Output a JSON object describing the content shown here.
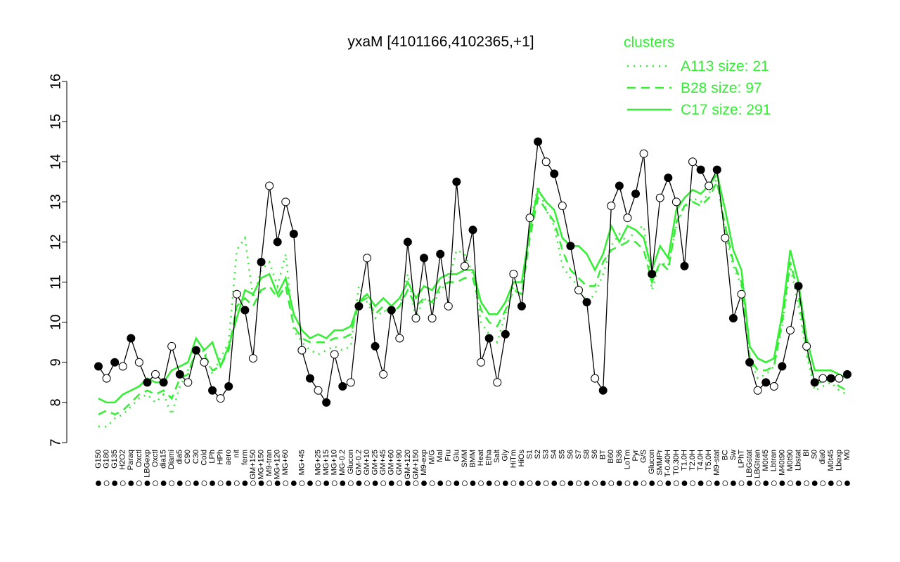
{
  "chart_data": {
    "type": "line",
    "title": "yxaM [4101166,4102365,+1]",
    "legend_title": "clusters",
    "legend_color": "#33ee33",
    "ylim": [
      7,
      16
    ],
    "yticks": [
      7,
      8,
      9,
      10,
      11,
      12,
      13,
      14,
      15,
      16
    ],
    "categories": [
      "G150",
      "G180",
      "G135",
      "H2O2",
      "Paraq",
      "Oxctl",
      "LBGexp",
      "Oxctl",
      "dia15",
      "Diami",
      "dia5",
      "C90",
      "C30",
      "Cold",
      "LPh",
      "HPh",
      "aero",
      "nit",
      "ferm",
      "GM+150",
      "MG+150",
      "M9-tran",
      "MG+120",
      "MG+60",
      null,
      "MG+45",
      null,
      "MG+25",
      "MG+15",
      "MG+10",
      "MG-0.2",
      "Glucon",
      "GM-0.2",
      "GM+10",
      "GM+25",
      "GM+45",
      "GM+60",
      "GM+90",
      "GM+120",
      "GM+150",
      "M9-exp",
      "M/G",
      "Mal",
      "Fru",
      "Glu",
      "SMM",
      "BMM",
      "Heat",
      "Etha",
      "Salt",
      "Gly",
      "HiTm",
      "HiOs",
      "S1",
      "S2",
      "S3",
      "S4",
      "S5",
      "S6",
      "S7",
      "S8",
      "S6",
      "BT",
      "B60",
      "B36",
      "LoTm",
      "Pyr",
      "G/S",
      "Glucon",
      "SMMPr",
      "T-0.40H",
      "T0.30H",
      "T1.0H",
      "T2.0H",
      "T4.0H",
      "T5.0H",
      "M9-stat",
      "BC",
      "Sw",
      "LPhT",
      "LBGstat",
      "LBGtran",
      "M0t45",
      "Lbtran",
      "M40t90",
      "M0t90",
      "Lbstat",
      "Bl",
      "S0",
      "dia0",
      "M0t45",
      "Lbexp",
      "M0"
    ],
    "values": [
      8.9,
      8.6,
      9.0,
      8.9,
      9.6,
      9.0,
      8.5,
      8.7,
      8.5,
      9.4,
      8.7,
      8.5,
      9.3,
      9.0,
      8.3,
      8.1,
      8.4,
      10.7,
      10.3,
      9.1,
      11.5,
      13.4,
      12.0,
      13.0,
      12.2,
      9.3,
      8.6,
      8.3,
      8.0,
      9.2,
      8.4,
      8.5,
      10.4,
      11.6,
      9.4,
      8.7,
      10.3,
      9.6,
      12.0,
      10.1,
      11.6,
      10.1,
      11.7,
      10.4,
      13.5,
      11.4,
      12.3,
      9.0,
      9.6,
      8.5,
      9.7,
      11.2,
      10.4,
      12.6,
      14.5,
      14.0,
      13.7,
      12.9,
      11.9,
      10.8,
      10.5,
      8.6,
      8.3,
      12.9,
      13.4,
      12.6,
      13.2,
      14.2,
      11.2,
      13.1,
      13.6,
      13.0,
      11.4,
      14.0,
      13.8,
      13.4,
      13.8,
      12.1,
      10.1,
      10.7,
      9.0,
      8.3,
      8.5,
      8.4,
      8.9,
      9.8,
      10.9,
      9.4,
      8.5,
      8.6,
      8.6,
      8.6,
      8.7
    ],
    "color": "#000000",
    "series": [
      {
        "name": "A113 size: 21",
        "color": "#33ee33",
        "style": "dotted",
        "values": [
          7.4,
          7.4,
          7.6,
          7.7,
          7.9,
          8.1,
          8.2,
          8.0,
          8.2,
          7.7,
          8.4,
          8.8,
          9.2,
          9.3,
          8.7,
          9.1,
          9.5,
          11.8,
          12.1,
          10.6,
          11.3,
          11.5,
          10.9,
          11.7,
          9.8,
          9.5,
          9.3,
          9.2,
          9.3,
          9.4,
          9.3,
          9.4,
          10.9,
          10.5,
          10.1,
          10.3,
          10.2,
          10.4,
          11.2,
          10.1,
          10.6,
          10.4,
          10.8,
          11.0,
          11.8,
          11.7,
          11.2,
          10.0,
          9.7,
          9.5,
          10.2,
          10.9,
          10.7,
          12.4,
          13.4,
          12.8,
          12.4,
          11.4,
          11.1,
          10.9,
          10.5,
          10.7,
          11.2,
          11.9,
          12.2,
          12.0,
          12.3,
          12.4,
          10.8,
          11.5,
          11.4,
          12.4,
          12.9,
          13.1,
          13.0,
          13.2,
          13.6,
          12.2,
          11.4,
          10.9,
          9.1,
          8.6,
          8.7,
          8.9,
          9.9,
          11.4,
          10.4,
          9.2,
          8.3,
          8.4,
          8.5,
          8.3,
          8.2
        ]
      },
      {
        "name": "B28 size: 97",
        "color": "#33ee33",
        "style": "dashed",
        "values": [
          7.7,
          7.8,
          7.7,
          7.8,
          8.0,
          8.2,
          8.3,
          8.2,
          8.3,
          8.1,
          8.6,
          8.7,
          9.3,
          9.2,
          8.8,
          8.9,
          9.3,
          10.4,
          10.6,
          10.4,
          10.8,
          10.9,
          10.6,
          10.9,
          9.9,
          9.6,
          9.5,
          9.5,
          9.5,
          9.6,
          9.6,
          9.7,
          10.5,
          10.6,
          10.2,
          10.4,
          10.2,
          10.4,
          10.8,
          10.4,
          10.6,
          10.5,
          10.9,
          11.0,
          11.0,
          11.1,
          11.1,
          10.3,
          10.0,
          9.9,
          10.3,
          10.8,
          10.7,
          12.1,
          13.1,
          12.8,
          12.5,
          11.8,
          11.3,
          11.1,
          10.9,
          10.9,
          11.5,
          11.8,
          11.9,
          12.0,
          12.0,
          11.8,
          11.0,
          11.5,
          11.3,
          12.5,
          12.9,
          13.0,
          12.9,
          13.1,
          13.5,
          12.4,
          11.5,
          11.0,
          9.1,
          8.8,
          8.8,
          8.9,
          10.0,
          11.5,
          10.7,
          9.3,
          8.5,
          8.5,
          8.6,
          8.4,
          8.3
        ]
      },
      {
        "name": "C17 size: 291",
        "color": "#33ee33",
        "style": "solid",
        "values": [
          8.1,
          8.0,
          8.0,
          8.2,
          8.3,
          8.4,
          8.6,
          8.5,
          8.5,
          8.8,
          8.9,
          9.0,
          9.6,
          9.3,
          9.5,
          8.9,
          9.4,
          10.1,
          10.8,
          10.7,
          11.1,
          11.2,
          10.7,
          11.1,
          10.2,
          9.8,
          9.6,
          9.7,
          9.6,
          9.8,
          9.8,
          9.9,
          10.5,
          10.7,
          10.4,
          10.6,
          10.4,
          10.6,
          11.0,
          10.6,
          10.9,
          10.8,
          11.1,
          11.2,
          11.2,
          11.3,
          11.3,
          10.5,
          10.2,
          10.2,
          10.5,
          11.0,
          11.0,
          12.3,
          13.3,
          13.0,
          12.8,
          12.1,
          11.9,
          11.9,
          11.7,
          11.3,
          11.7,
          12.4,
          12.0,
          12.4,
          12.3,
          12.1,
          11.3,
          11.9,
          11.6,
          12.8,
          13.1,
          13.3,
          13.2,
          13.4,
          13.7,
          12.8,
          11.8,
          11.3,
          9.4,
          9.1,
          9.0,
          9.1,
          10.2,
          11.8,
          11.0,
          9.6,
          8.8,
          8.8,
          8.8,
          8.7,
          8.6
        ]
      }
    ]
  }
}
